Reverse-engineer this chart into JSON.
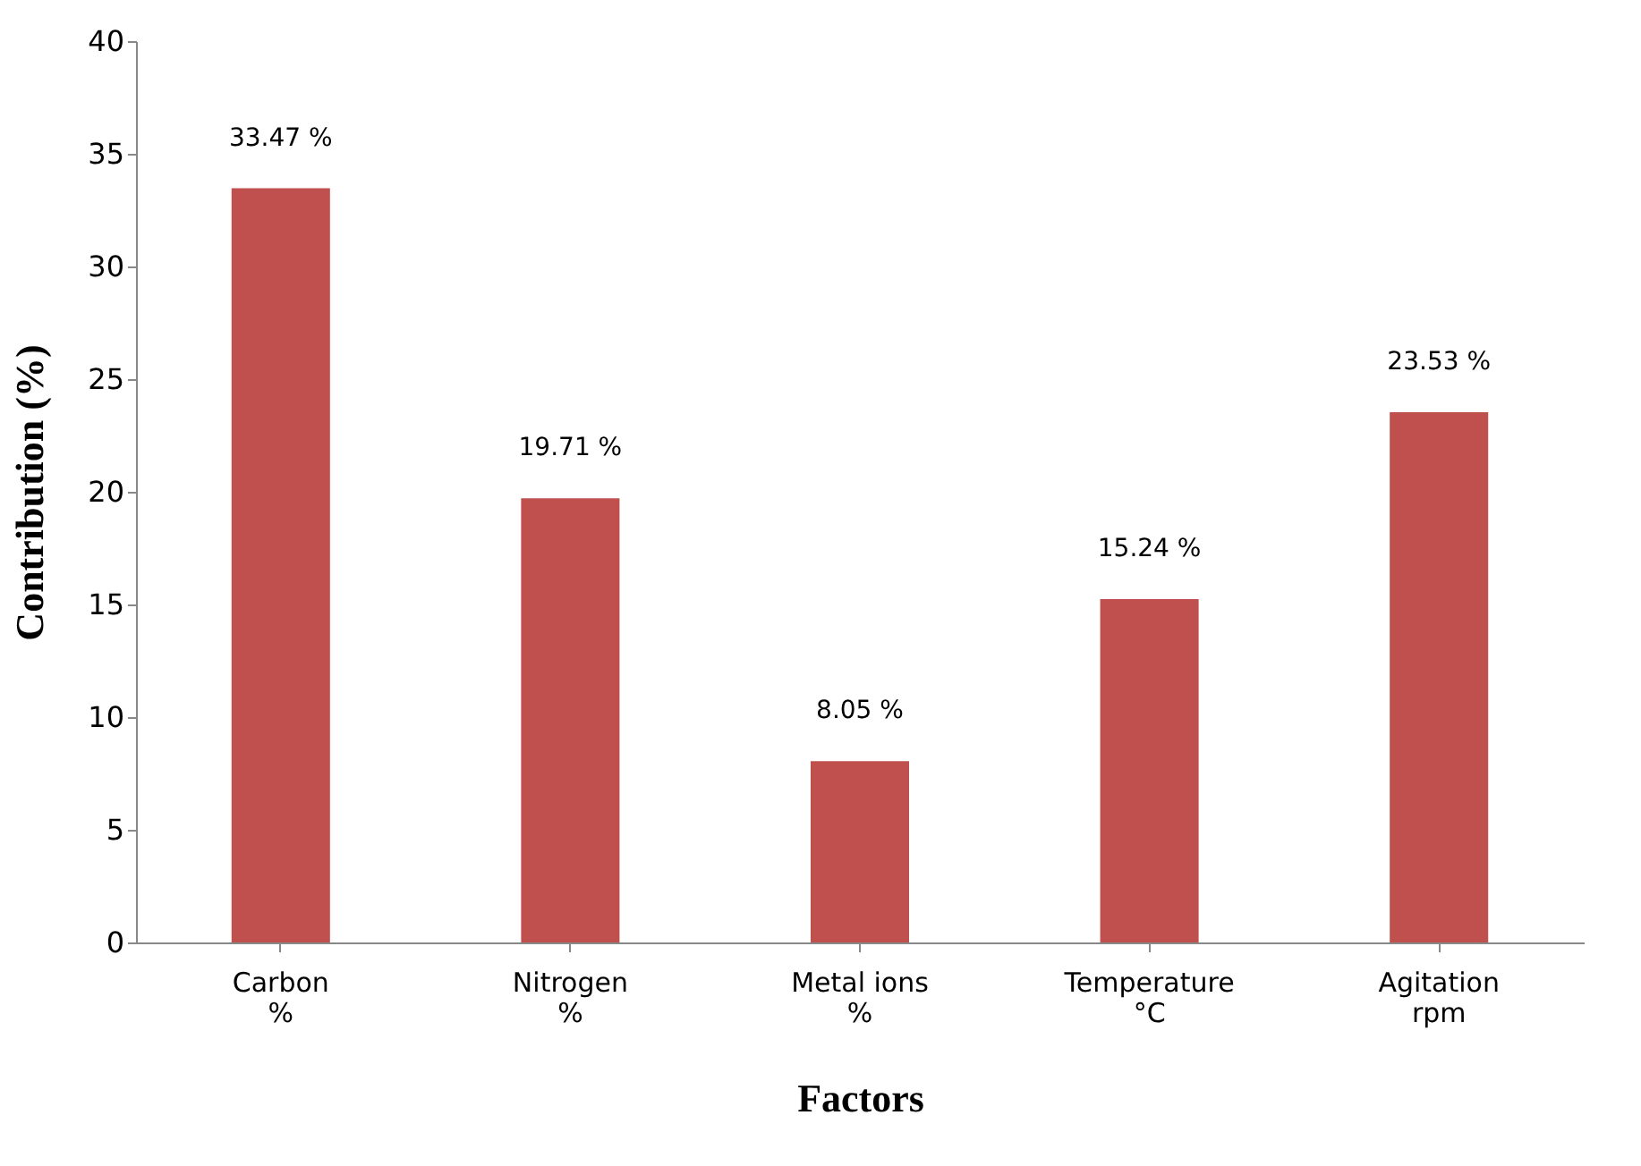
{
  "chart_data": {
    "type": "bar",
    "xlabel": "Factors",
    "ylabel": "Contribution (%)",
    "categories": [
      "Carbon\n%",
      "Nitrogen\n%",
      "Metal ions\n%",
      "Temperature\n°C",
      "Agitation\nrpm"
    ],
    "values": [
      33.47,
      19.71,
      8.05,
      15.24,
      23.53
    ],
    "value_labels": [
      "33.47 %",
      "19.71 %",
      "8.05 %",
      "15.24 %",
      "23.53 %"
    ],
    "color": "#c0504d",
    "ylim": [
      0,
      40
    ],
    "yticks": [
      0,
      5,
      10,
      15,
      20,
      25,
      30,
      35,
      40
    ],
    "grid": false
  }
}
